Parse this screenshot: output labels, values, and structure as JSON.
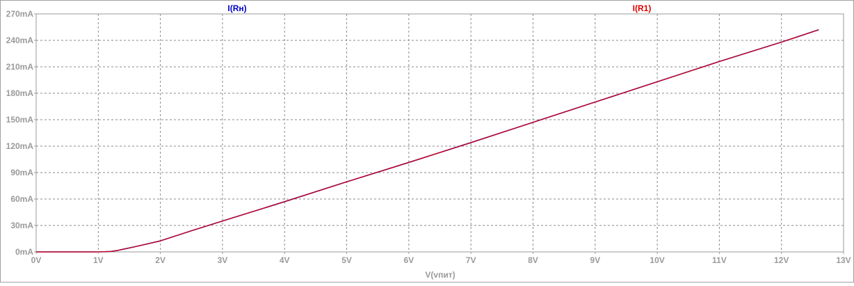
{
  "chart_data": {
    "type": "line",
    "title": "",
    "xlabel": "V(vпит)",
    "ylabel": "",
    "xlim": [
      0,
      13
    ],
    "ylim": [
      0,
      270
    ],
    "x_ticks": [
      0,
      1,
      2,
      3,
      4,
      5,
      6,
      7,
      8,
      9,
      10,
      11,
      12,
      13
    ],
    "x_tick_labels": [
      "0V",
      "1V",
      "2V",
      "3V",
      "4V",
      "5V",
      "6V",
      "7V",
      "8V",
      "9V",
      "10V",
      "11V",
      "12V",
      "13V"
    ],
    "y_ticks": [
      0,
      30,
      60,
      90,
      120,
      150,
      180,
      210,
      240,
      270
    ],
    "y_tick_labels": [
      "0mA",
      "30mA",
      "60mA",
      "90mA",
      "120mA",
      "150mA",
      "180mA",
      "210mA",
      "240mA",
      "270mA"
    ],
    "grid": true,
    "series": [
      {
        "name": "I(Rн)",
        "color": "#0000c8",
        "x": [
          0,
          0.5,
          1.0,
          1.2,
          1.3,
          1.4,
          1.6,
          2.0,
          2.5,
          3.0,
          4.0,
          5.0,
          6.0,
          7.0,
          8.0,
          9.0,
          10.0,
          11.0,
          12.0,
          12.6
        ],
        "values": [
          0,
          0,
          0,
          0.5,
          1.5,
          3,
          6,
          12.5,
          24,
          35,
          57,
          79.5,
          101.5,
          124,
          147,
          170,
          193,
          216,
          238,
          252
        ]
      },
      {
        "name": "I(R1)",
        "color": "#e00000",
        "x": [
          0,
          0.5,
          1.0,
          1.2,
          1.3,
          1.4,
          1.6,
          2.0,
          2.5,
          3.0,
          4.0,
          5.0,
          6.0,
          7.0,
          8.0,
          9.0,
          10.0,
          11.0,
          12.0,
          12.6
        ],
        "values": [
          0,
          0,
          0,
          0.5,
          1.5,
          3,
          6,
          12.5,
          24,
          35,
          57,
          79.5,
          101.5,
          124,
          147,
          170,
          193,
          216,
          238,
          252
        ]
      }
    ]
  }
}
